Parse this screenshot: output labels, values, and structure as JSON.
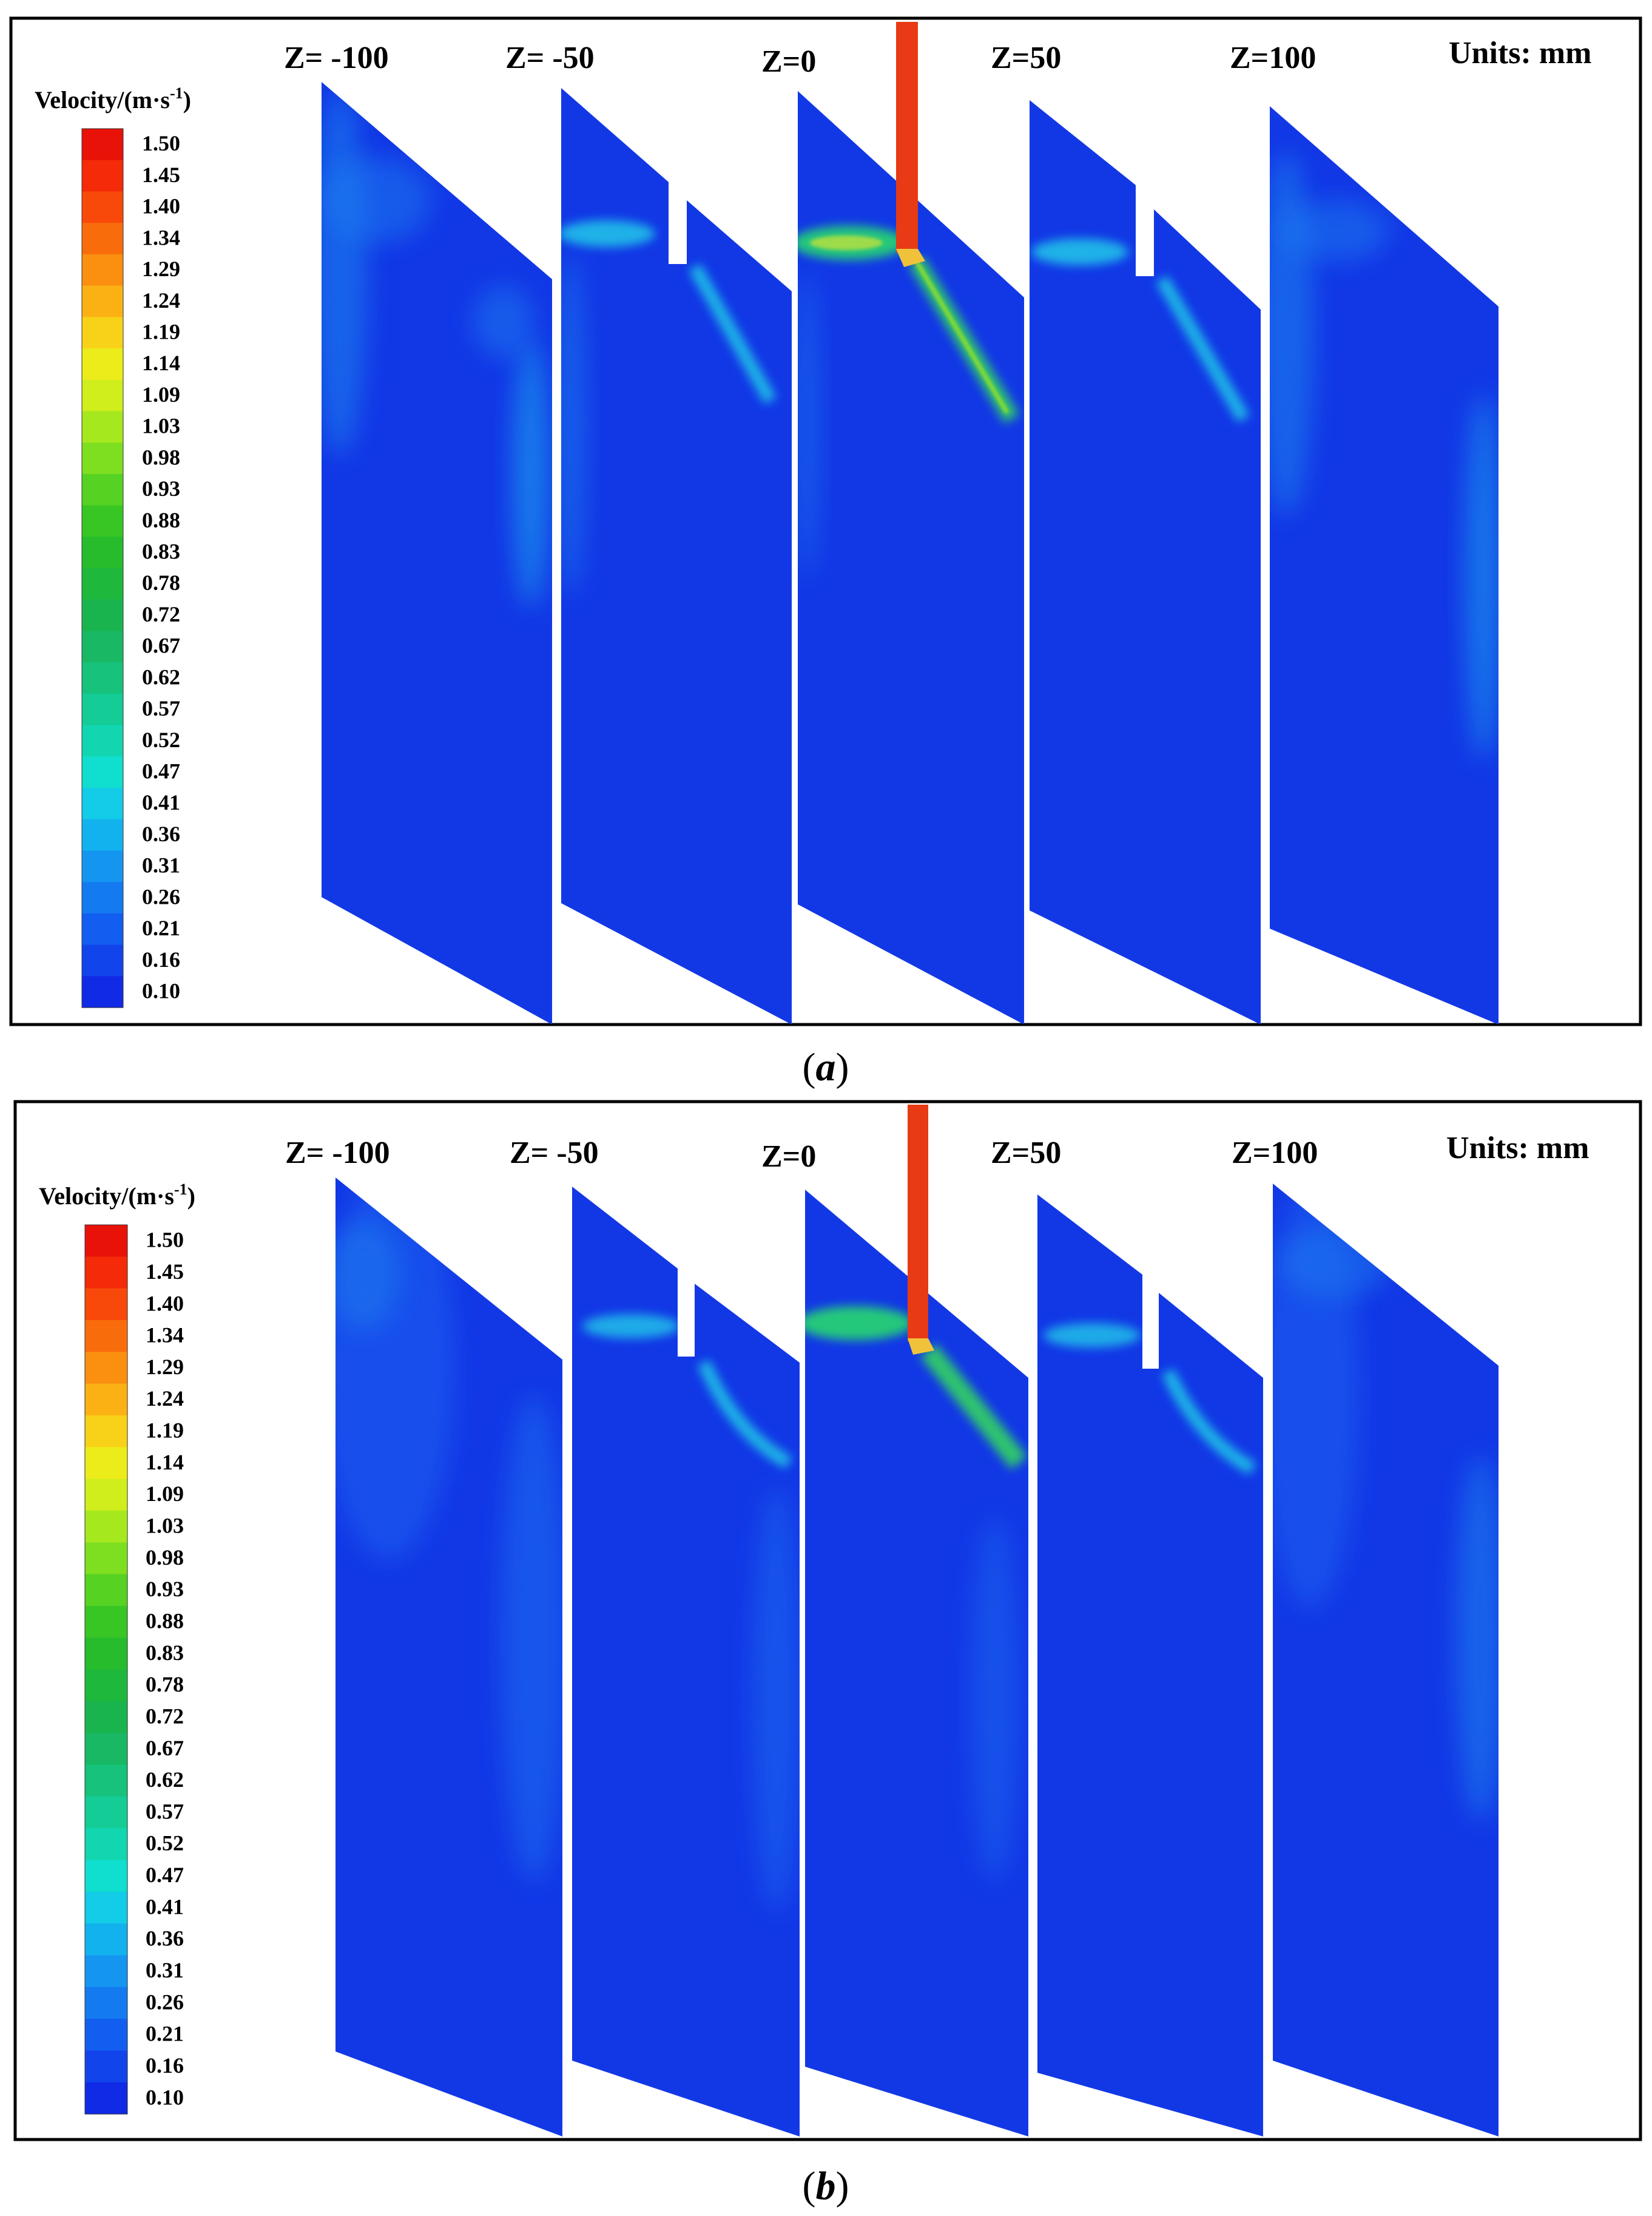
{
  "colorbar": {
    "title_main": "Velocity/(m·s",
    "title_exp": "-1",
    "title_close": ")",
    "ticks": [
      "1.50",
      "1.45",
      "1.40",
      "1.34",
      "1.29",
      "1.24",
      "1.19",
      "1.14",
      "1.09",
      "1.03",
      "0.98",
      "0.93",
      "0.88",
      "0.83",
      "0.78",
      "0.72",
      "0.67",
      "0.62",
      "0.57",
      "0.52",
      "0.47",
      "0.41",
      "0.36",
      "0.31",
      "0.26",
      "0.21",
      "0.16",
      "0.10"
    ],
    "colors": [
      "#e81208",
      "#f42a08",
      "#f8490a",
      "#f96c0c",
      "#fa8f10",
      "#fbb114",
      "#f8d218",
      "#ecec1a",
      "#cfee1c",
      "#a6e81e",
      "#7ede20",
      "#56d222",
      "#38c624",
      "#26bc2c",
      "#1eb83c",
      "#1ab44e",
      "#18b864",
      "#16c27c",
      "#14cc96",
      "#12d6b0",
      "#10dece",
      "#12cce8",
      "#12b2ee",
      "#1496f0",
      "#147af0",
      "#125ef0",
      "#1244ec",
      "#102ae6"
    ]
  },
  "panels": [
    {
      "caption_open": "(",
      "caption_letter": "a",
      "caption_close": ")",
      "units": "Units: mm",
      "slices": [
        {
          "label": "Z= -100",
          "z": -100
        },
        {
          "label": "Z= -50",
          "z": -50
        },
        {
          "label": "Z=0",
          "z": 0
        },
        {
          "label": "Z=50",
          "z": 50
        },
        {
          "label": "Z=100",
          "z": 100
        }
      ]
    },
    {
      "caption_open": "(",
      "caption_letter": "b",
      "caption_close": ")",
      "units": "Units: mm",
      "slices": [
        {
          "label": "Z= -100",
          "z": -100
        },
        {
          "label": "Z= -50",
          "z": -50
        },
        {
          "label": "Z=0",
          "z": 0
        },
        {
          "label": "Z=50",
          "z": 50
        },
        {
          "label": "Z=100",
          "z": 100
        }
      ]
    }
  ],
  "colors": {
    "field_base": "#1238e6",
    "jet_core": "#e83a14",
    "frame": "#000000"
  }
}
